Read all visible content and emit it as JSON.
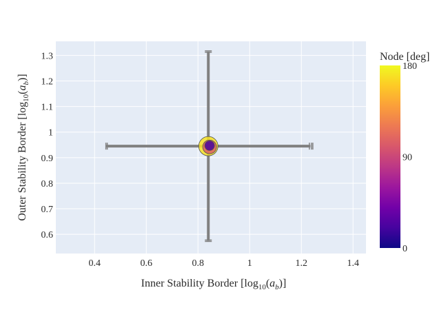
{
  "chart_data": {
    "type": "scatter",
    "title": "",
    "xlabel": "Inner Stability Border [log10(ab)]",
    "ylabel": "Outer Stability Border [log10(ab)]",
    "xlabel_parts": {
      "pre": "Inner Stability Border [log",
      "sub": "10",
      "mid": "(",
      "var": "a",
      "varsub": "b",
      "post": ")]"
    },
    "ylabel_parts": {
      "pre": "Outer Stability Border [log",
      "sub": "10",
      "mid": "(",
      "var": "a",
      "varsub": "b",
      "post": ")]"
    },
    "xlim": [
      0.25,
      1.45
    ],
    "ylim": [
      0.525,
      1.355
    ],
    "xticks": [
      0.4,
      0.6,
      0.8,
      1,
      1.2,
      1.4
    ],
    "xtick_labels": [
      "0.4",
      "0.6",
      "0.8",
      "1",
      "1.2",
      "1.4"
    ],
    "yticks": [
      0.6,
      0.7,
      0.8,
      0.9,
      1,
      1.1,
      1.2,
      1.3
    ],
    "ytick_labels": [
      "0.6",
      "0.7",
      "0.8",
      "0.9",
      "1",
      "1.1",
      "1.2",
      "1.3"
    ],
    "grid": true,
    "errorbar_color": "#808080",
    "points": [
      {
        "x": 0.84,
        "y": 0.945,
        "xerr": [
          0.445,
          1.235
        ],
        "yerr": [
          0.575,
          1.315
        ],
        "node_deg": 170,
        "marker": "large"
      },
      {
        "x": 0.845,
        "y": 0.942,
        "node_deg": 105,
        "marker": "medium"
      },
      {
        "x": 0.845,
        "y": 0.947,
        "node_deg": 20,
        "marker": "small"
      }
    ],
    "colorbar": {
      "title": "Node [deg]",
      "range": [
        0,
        180
      ],
      "ticks": [
        0,
        90,
        180
      ],
      "tick_labels": [
        "0",
        "90",
        "180"
      ],
      "colorscale": "plasma",
      "stops": [
        "#0d0887",
        "#46039f",
        "#7201a8",
        "#9c179e",
        "#bd3786",
        "#d8576b",
        "#ed7953",
        "#fb9f3a",
        "#fdca26",
        "#f0f921"
      ]
    },
    "plot_bg": "#e5ecf6"
  }
}
